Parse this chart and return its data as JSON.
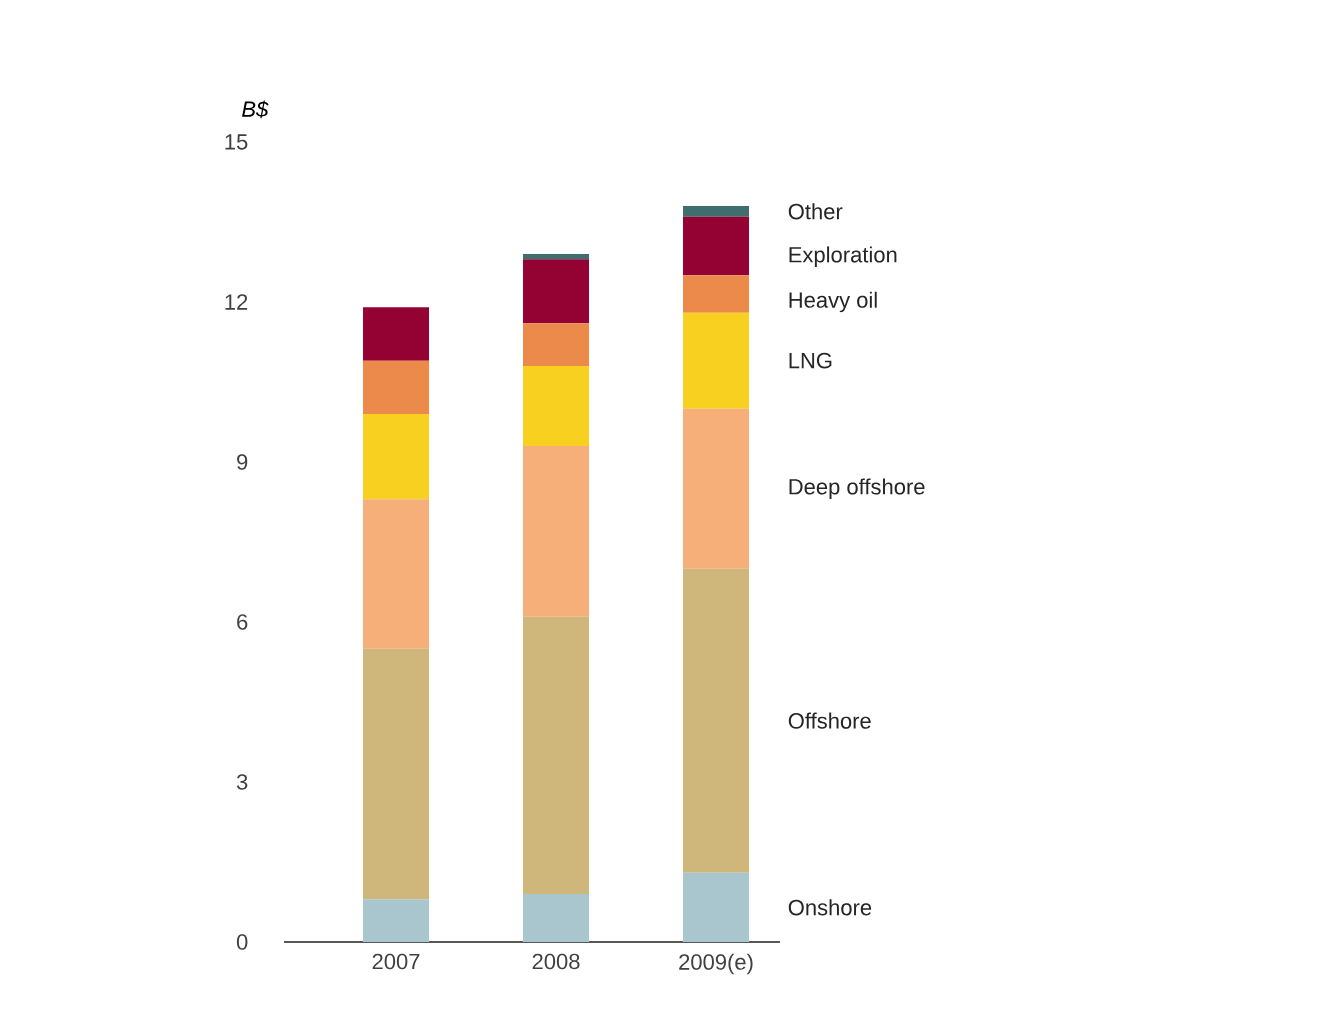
{
  "chart_data": {
    "type": "bar",
    "stacked": true,
    "ylabel": "B$",
    "categories": [
      "2007",
      "2008",
      "2009(e)"
    ],
    "series": [
      {
        "name": "Onshore",
        "color": "#a9c6ce",
        "values": [
          0.8,
          0.9,
          1.3
        ]
      },
      {
        "name": "Offshore",
        "color": "#cfb77b",
        "values": [
          4.7,
          5.2,
          5.7
        ]
      },
      {
        "name": "Deep offshore",
        "color": "#f7af79",
        "values": [
          2.8,
          3.2,
          3.0
        ]
      },
      {
        "name": "LNG",
        "color": "#f8d020",
        "values": [
          1.6,
          1.5,
          1.8
        ]
      },
      {
        "name": "Heavy oil",
        "color": "#eb8a4b",
        "values": [
          1.0,
          0.8,
          0.7
        ]
      },
      {
        "name": "Exploration",
        "color": "#940233",
        "values": [
          1.0,
          1.2,
          1.1
        ]
      },
      {
        "name": "Other",
        "color": "#3e6e6e",
        "values": [
          0,
          0.1,
          0.2
        ]
      }
    ],
    "ylim": [
      0,
      15
    ],
    "yticks": [
      0,
      3,
      6,
      9,
      12,
      15
    ]
  }
}
